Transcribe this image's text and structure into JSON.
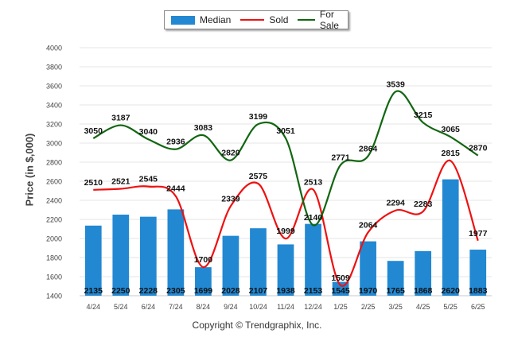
{
  "chart_data": {
    "type": "bar",
    "categories": [
      "4/24",
      "5/24",
      "6/24",
      "7/24",
      "8/24",
      "9/24",
      "10/24",
      "11/24",
      "12/24",
      "1/25",
      "2/25",
      "3/25",
      "4/25",
      "5/25",
      "6/25"
    ],
    "series": [
      {
        "name": "Median",
        "type": "bar",
        "color": "#2288d2",
        "values": [
          2135,
          2250,
          2228,
          2305,
          1699,
          2028,
          2107,
          1938,
          2153,
          1545,
          1970,
          1765,
          1868,
          2620,
          1883
        ]
      },
      {
        "name": "Sold",
        "type": "line",
        "color": "#ee1111",
        "values": [
          2510,
          2521,
          2545,
          2444,
          1700,
          2339,
          2575,
          1999,
          2513,
          1509,
          2064,
          2294,
          2283,
          2815,
          1977
        ]
      },
      {
        "name": "For Sale",
        "type": "line",
        "color": "#116611",
        "values": [
          3050,
          3187,
          3040,
          2936,
          3083,
          2820,
          3199,
          3051,
          2140,
          2771,
          2864,
          3539,
          3215,
          3065,
          2870
        ]
      }
    ],
    "title": "",
    "xlabel": "",
    "ylabel": "Price (in $,000)",
    "ylim": [
      1400,
      4000
    ],
    "yticks": [
      1400,
      1600,
      1800,
      2000,
      2200,
      2400,
      2600,
      2800,
      3000,
      3200,
      3400,
      3600,
      3800,
      4000
    ],
    "grid": true,
    "legend": "top-center"
  },
  "footer": {
    "copyright": "Copyright © Trendgraphix, Inc."
  }
}
